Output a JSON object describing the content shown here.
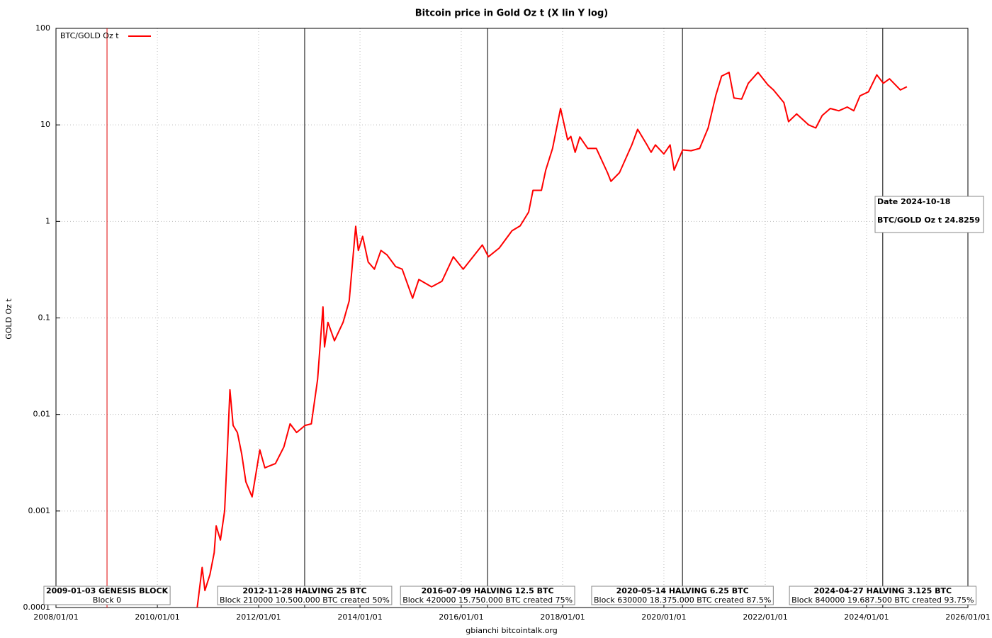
{
  "chart_data": {
    "type": "line",
    "title": "Bitcoin price in Gold Oz t (X lin Y log)",
    "y_label": "GOLD Oz t",
    "footer": "gbianchi bitcointalk.org",
    "log_y": true,
    "grid": true,
    "legend": "top-left",
    "xlim": [
      "2008/01/01",
      "2026/01/01"
    ],
    "xticks": [
      "2008/01/01",
      "2010/01/01",
      "2012/01/01",
      "2014/01/01",
      "2016/01/01",
      "2018/01/01",
      "2020/01/01",
      "2022/01/01",
      "2024/01/01",
      "2026/01/01"
    ],
    "ylim": [
      0.0001,
      100
    ],
    "yticks": [
      0.0001,
      0.001,
      0.01,
      0.1,
      1,
      10,
      100
    ],
    "series": [
      {
        "name": "BTC/GOLD Oz t",
        "color": "#ff0000",
        "x": [
          "2010/10/15",
          "2010/11/20",
          "2010/12/10",
          "2011/01/15",
          "2011/02/15",
          "2011/03/01",
          "2011/04/01",
          "2011/05/01",
          "2011/05/20",
          "2011/06/08",
          "2011/07/01",
          "2011/08/01",
          "2011/09/01",
          "2011/10/01",
          "2011/11/15",
          "2012/01/10",
          "2012/02/15",
          "2012/05/01",
          "2012/07/01",
          "2012/08/15",
          "2012/10/01",
          "2012/12/01",
          "2013/01/15",
          "2013/03/01",
          "2013/04/09",
          "2013/04/20",
          "2013/05/15",
          "2013/07/01",
          "2013/09/01",
          "2013/10/15",
          "2013/12/01",
          "2013/12/20",
          "2014/01/20",
          "2014/03/01",
          "2014/04/15",
          "2014/06/01",
          "2014/07/15",
          "2014/09/15",
          "2014/11/01",
          "2015/01/15",
          "2015/03/01",
          "2015/06/01",
          "2015/08/15",
          "2015/11/05",
          "2016/01/15",
          "2016/06/01",
          "2016/07/15",
          "2016/10/01",
          "2017/01/01",
          "2017/03/01",
          "2017/05/01",
          "2017/06/01",
          "2017/08/01",
          "2017/09/01",
          "2017/10/20",
          "2017/12/17",
          "2018/02/06",
          "2018/03/01",
          "2018/04/01",
          "2018/05/05",
          "2018/07/01",
          "2018/09/01",
          "2018/11/20",
          "2018/12/15",
          "2019/02/15",
          "2019/05/15",
          "2019/06/26",
          "2019/09/01",
          "2019/10/01",
          "2019/11/01",
          "2020/01/01",
          "2020/02/15",
          "2020/03/15",
          "2020/05/15",
          "2020/07/15",
          "2020/09/15",
          "2020/11/15",
          "2021/01/10",
          "2021/02/20",
          "2021/04/15",
          "2021/05/20",
          "2021/07/15",
          "2021/09/01",
          "2021/11/10",
          "2022/01/20",
          "2022/03/01",
          "2022/05/15",
          "2022/06/18",
          "2022/08/15",
          "2022/11/10",
          "2022/12/31",
          "2023/02/15",
          "2023/04/15",
          "2023/06/15",
          "2023/08/15",
          "2023/10/01",
          "2023/11/15",
          "2024/01/15",
          "2024/03/15",
          "2024/05/01",
          "2024/06/15",
          "2024/09/01",
          "2024/10/18"
        ],
        "values": [
          0.0001,
          0.00026,
          0.00015,
          0.00022,
          0.00037,
          0.0007,
          0.0005,
          0.001,
          0.0039,
          0.018,
          0.0077,
          0.0065,
          0.0039,
          0.002,
          0.0014,
          0.0043,
          0.0028,
          0.0031,
          0.0046,
          0.008,
          0.0065,
          0.0077,
          0.008,
          0.023,
          0.13,
          0.05,
          0.09,
          0.058,
          0.09,
          0.15,
          0.89,
          0.5,
          0.7,
          0.38,
          0.32,
          0.5,
          0.45,
          0.34,
          0.32,
          0.16,
          0.25,
          0.21,
          0.24,
          0.43,
          0.32,
          0.57,
          0.43,
          0.53,
          0.8,
          0.9,
          1.25,
          2.1,
          2.1,
          3.4,
          5.7,
          14.8,
          7,
          7.6,
          5.2,
          7.5,
          5.7,
          5.7,
          3.2,
          2.6,
          3.2,
          6.2,
          9.0,
          6.2,
          5.2,
          6.2,
          5,
          6.2,
          3.4,
          5.5,
          5.4,
          5.7,
          9.3,
          20.3,
          32,
          35,
          19,
          18.5,
          27,
          35,
          26,
          23,
          17,
          10.8,
          13,
          10,
          9.3,
          12.5,
          14.8,
          14,
          15.3,
          14,
          20,
          22,
          33,
          27,
          30,
          23,
          24.8259
        ]
      }
    ],
    "events": [
      {
        "date": "2009/01/03",
        "label": "2009-01-03 GENESIS BLOCK",
        "detail": "Block 0",
        "color": "#e00000"
      },
      {
        "date": "2012/11/28",
        "label": "2012-11-28 HALVING 25 BTC",
        "detail": "Block 210000 10.500.000 BTC created 50%",
        "color": "#000000"
      },
      {
        "date": "2016/07/09",
        "label": "2016-07-09 HALVING 12.5 BTC",
        "detail": "Block 420000 15.750.000 BTC created 75%",
        "color": "#000000"
      },
      {
        "date": "2020/05/14",
        "label": "2020-05-14 HALVING 6.25 BTC",
        "detail": "Block 630000 18.375.000 BTC created 87.5%",
        "color": "#000000"
      },
      {
        "date": "2024/04/27",
        "label": "2024-04-27 HALVING 3.125 BTC",
        "detail": "Block 840000 19.687.500 BTC created 93.75%",
        "color": "#000000"
      }
    ],
    "tooltip": {
      "date_label": "Date 2024-10-18",
      "value_label": "BTC/GOLD Oz t 24.8259"
    }
  }
}
